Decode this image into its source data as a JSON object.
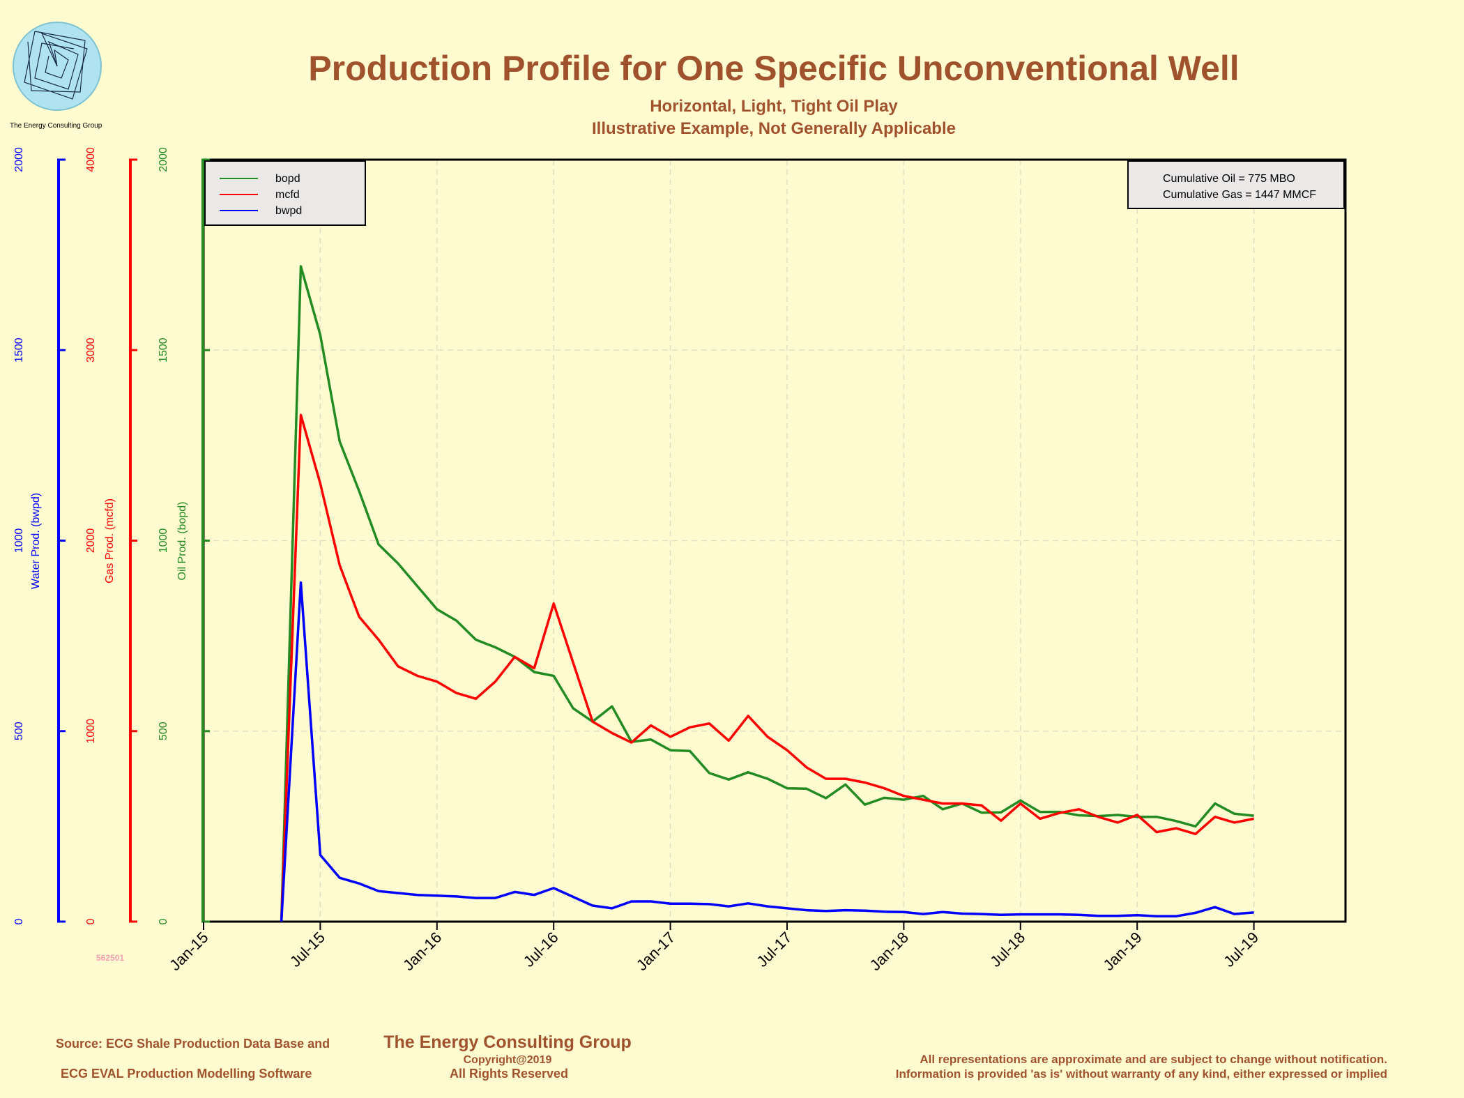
{
  "header": {
    "title": "Production Profile for One Specific Unconventional Well",
    "subtitle1": "Horizontal, Light, Tight Oil Play",
    "subtitle2": "Illustrative Example, Not Generally Applicable",
    "logo_caption": "The Energy Consulting Group"
  },
  "cumulative_box": {
    "line1": "Cumulative Oil = 775  MBO",
    "line2": "Cumulative Gas = 1447  MMCF"
  },
  "well_id": "562501",
  "footer": {
    "source_line1": "Source: ECG Shale Production Data Base and",
    "source_line2": "ECG EVAL Production Modelling Software",
    "company": "The Energy Consulting Group",
    "copyright": "Copyright@2019",
    "rights": "All Rights Reserved",
    "disclaimer1": "All representations are approximate and are subject to change without notification.",
    "disclaimer2": "Information is provided 'as is' without warranty of any kind, either expressed or implied"
  },
  "colors": {
    "background": "#fffbd0",
    "oil": "#228b22",
    "gas": "#ff0000",
    "water": "#0000ff",
    "title": "#a0522d",
    "legend_bg": "#ebe8e8"
  },
  "chart_data": {
    "type": "line",
    "x_tick_labels": [
      "Jan-15",
      "Jul-15",
      "Jan-16",
      "Jul-16",
      "Jan-17",
      "Jul-17",
      "Jan-18",
      "Jul-18",
      "Jan-19",
      "Jul-19"
    ],
    "x_axis_range_months": [
      0,
      59
    ],
    "grid": true,
    "legend_position": "top-left",
    "legend": [
      "bopd",
      "mcfd",
      "bwpd"
    ],
    "axes": [
      {
        "name": "oil",
        "label": "Oil Prod. (bopd)",
        "ylim": [
          0,
          2000
        ],
        "ticks": [
          "0",
          "500",
          "1000",
          "1500",
          "2000"
        ]
      },
      {
        "name": "gas",
        "label": "Gas Prod. (mcfd)",
        "ylim": [
          0,
          4000
        ],
        "ticks": [
          "0",
          "1000",
          "2000",
          "3000",
          "4000"
        ]
      },
      {
        "name": "water",
        "label": "Water Prod. (bwpd)",
        "ylim": [
          0,
          2000
        ],
        "ticks": [
          "0",
          "500",
          "1000",
          "1500",
          "2000"
        ]
      }
    ],
    "series": [
      {
        "name": "bopd",
        "axis": "oil",
        "x": [
          4,
          5,
          6,
          7,
          8,
          9,
          10,
          11,
          12,
          13,
          14,
          15,
          16,
          17,
          18,
          19,
          20,
          21,
          22,
          23,
          24,
          25,
          26,
          27,
          28,
          29,
          30,
          31,
          32,
          33,
          34,
          35,
          36,
          37,
          38,
          39,
          40,
          41,
          42,
          43,
          44,
          45,
          46,
          47,
          48,
          49,
          50,
          51,
          52,
          53,
          54
        ],
        "values": [
          0,
          1720,
          1540,
          1260,
          1130,
          990,
          940,
          880,
          820,
          790,
          740,
          720,
          695,
          655,
          645,
          560,
          525,
          565,
          472,
          478,
          450,
          448,
          390,
          373,
          392,
          375,
          350,
          349,
          324,
          360,
          307,
          325,
          320,
          330,
          295,
          310,
          286,
          287,
          318,
          288,
          288,
          279,
          277,
          280,
          275,
          275,
          264,
          250,
          310,
          283,
          278
        ]
      },
      {
        "name": "mcfd",
        "axis": "gas",
        "x": [
          4,
          5,
          6,
          7,
          8,
          9,
          10,
          11,
          12,
          13,
          14,
          15,
          16,
          17,
          18,
          19,
          20,
          21,
          22,
          23,
          24,
          25,
          26,
          27,
          28,
          29,
          30,
          31,
          32,
          33,
          34,
          35,
          36,
          37,
          38,
          39,
          40,
          41,
          42,
          43,
          44,
          45,
          46,
          47,
          48,
          49,
          50,
          51,
          52,
          53,
          54
        ],
        "values": [
          0,
          2660,
          2300,
          1870,
          1600,
          1480,
          1340,
          1290,
          1260,
          1200,
          1170,
          1260,
          1390,
          1330,
          1670,
          1360,
          1050,
          990,
          940,
          1030,
          970,
          1020,
          1040,
          950,
          1080,
          970,
          900,
          810,
          750,
          750,
          730,
          700,
          660,
          640,
          620,
          620,
          610,
          530,
          620,
          540,
          570,
          590,
          550,
          520,
          560,
          470,
          490,
          460,
          550,
          520,
          540
        ]
      },
      {
        "name": "bwpd",
        "axis": "water",
        "x": [
          4,
          5,
          6,
          7,
          8,
          9,
          10,
          11,
          12,
          13,
          14,
          15,
          16,
          17,
          18,
          19,
          20,
          21,
          22,
          23,
          24,
          25,
          26,
          27,
          28,
          29,
          30,
          31,
          32,
          33,
          34,
          35,
          36,
          37,
          38,
          39,
          40,
          41,
          42,
          43,
          44,
          45,
          46,
          47,
          48,
          49,
          50,
          51,
          52,
          53,
          54
        ],
        "values": [
          0,
          890,
          175,
          115,
          100,
          80,
          75,
          70,
          68,
          66,
          62,
          62,
          78,
          70,
          88,
          65,
          42,
          35,
          53,
          53,
          47,
          47,
          46,
          40,
          48,
          40,
          35,
          30,
          28,
          30,
          29,
          26,
          25,
          20,
          25,
          21,
          20,
          18,
          19,
          19,
          19,
          18,
          15,
          15,
          17,
          14,
          14,
          23,
          38,
          20,
          24
        ]
      }
    ]
  }
}
